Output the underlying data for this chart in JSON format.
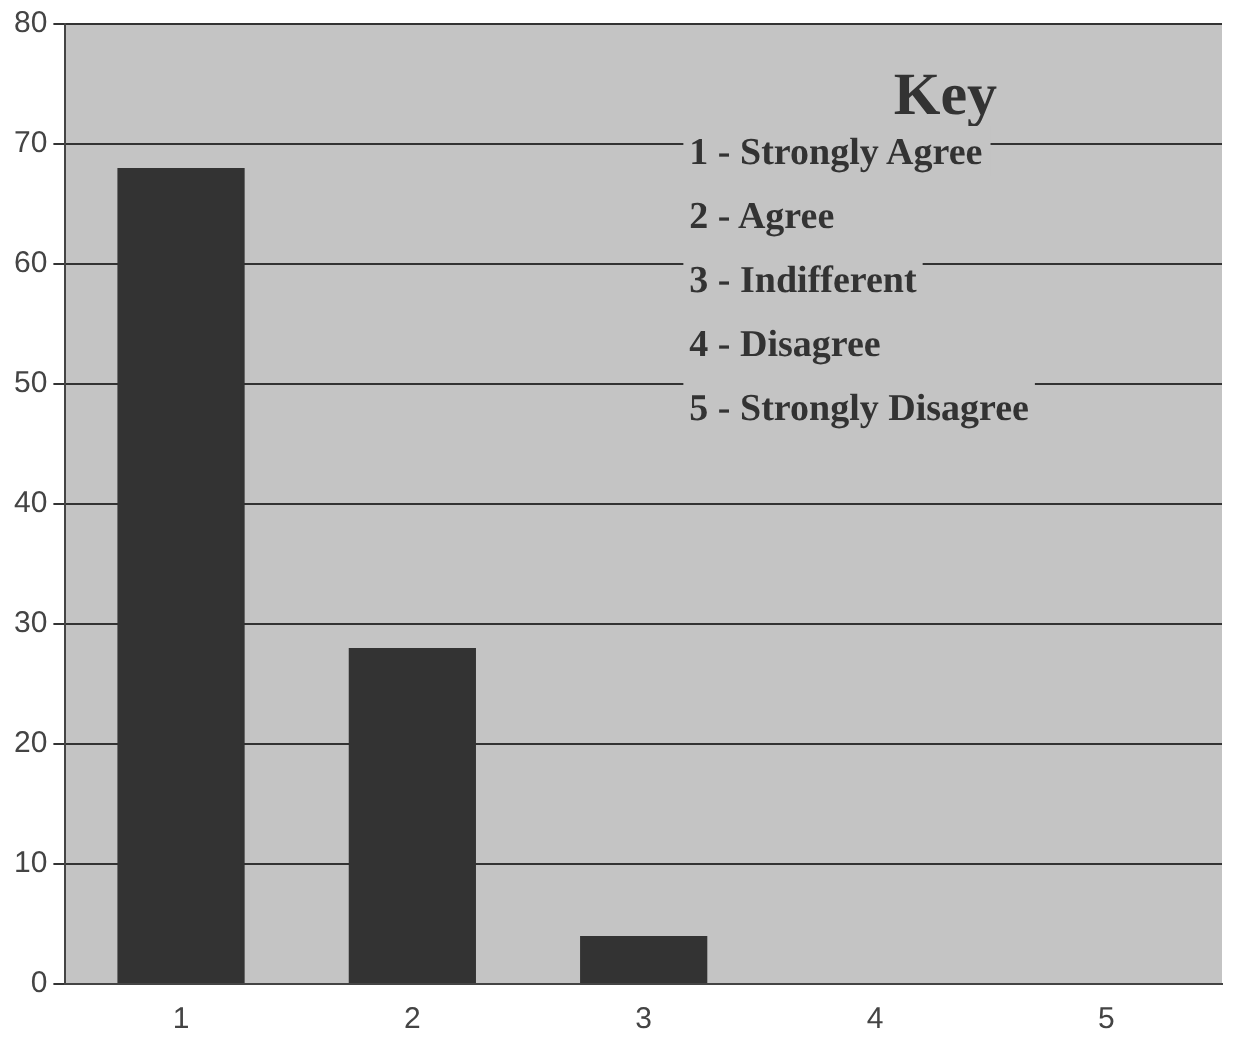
{
  "chart_data": {
    "type": "bar",
    "categories": [
      "1",
      "2",
      "3",
      "4",
      "5"
    ],
    "values": [
      68,
      28,
      4,
      0,
      0
    ],
    "color": "#333333",
    "ylim": [
      0,
      80
    ],
    "yticks": [
      0,
      10,
      20,
      30,
      40,
      50,
      60,
      70,
      80
    ],
    "grid": "y",
    "annotations": [
      "Key",
      "1 - Strongly Agree",
      "2 - Agree",
      "3 - Indifferent",
      "4 - Disagree",
      "5 - Strongly Disagree"
    ]
  }
}
